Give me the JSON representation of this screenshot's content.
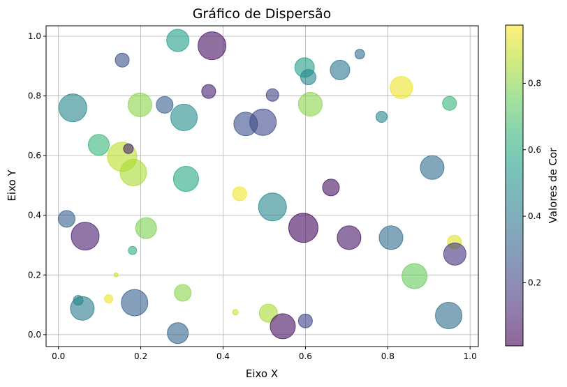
{
  "chart_data": {
    "type": "scatter",
    "title": "Gráfico de Dispersão",
    "xlabel": "Eixo X",
    "ylabel": "Eixo Y",
    "xlim": [
      -0.03,
      1.02
    ],
    "ylim": [
      -0.04,
      1.035
    ],
    "xticks": [
      0.0,
      0.2,
      0.4,
      0.6,
      0.8,
      1.0
    ],
    "xtick_labels": [
      "0.0",
      "0.2",
      "0.4",
      "0.6",
      "0.8",
      "1.0"
    ],
    "yticks": [
      0.0,
      0.2,
      0.4,
      0.6,
      0.8,
      1.0
    ],
    "ytick_labels": [
      "0.0",
      "0.2",
      "0.4",
      "0.6",
      "0.8",
      "1.0"
    ],
    "grid": true,
    "alpha": 0.6,
    "colormap": "viridis",
    "colorbar": {
      "label": "Valores de Cor",
      "range": [
        0.01,
        0.975
      ],
      "ticks": [
        0.2,
        0.4,
        0.6,
        0.8
      ],
      "tick_labels": [
        "0.2",
        "0.4",
        "0.6",
        "0.8"
      ]
    },
    "points": [
      {
        "x": 0.035,
        "y": 0.76,
        "size": 20,
        "color": 0.45
      },
      {
        "x": 0.02,
        "y": 0.388,
        "size": 12,
        "color": 0.3
      },
      {
        "x": 0.065,
        "y": 0.33,
        "size": 20,
        "color": 0.08
      },
      {
        "x": 0.058,
        "y": 0.088,
        "size": 17,
        "color": 0.4
      },
      {
        "x": 0.048,
        "y": 0.115,
        "size": 7,
        "color": 0.45
      },
      {
        "x": 0.098,
        "y": 0.636,
        "size": 15,
        "color": 0.65
      },
      {
        "x": 0.155,
        "y": 0.92,
        "size": 10,
        "color": 0.25
      },
      {
        "x": 0.155,
        "y": 0.596,
        "size": 21,
        "color": 0.88
      },
      {
        "x": 0.17,
        "y": 0.623,
        "size": 7,
        "color": 0.1
      },
      {
        "x": 0.182,
        "y": 0.543,
        "size": 19,
        "color": 0.85
      },
      {
        "x": 0.198,
        "y": 0.77,
        "size": 17,
        "color": 0.8
      },
      {
        "x": 0.185,
        "y": 0.107,
        "size": 19,
        "color": 0.3
      },
      {
        "x": 0.18,
        "y": 0.282,
        "size": 6,
        "color": 0.62
      },
      {
        "x": 0.14,
        "y": 0.2,
        "size": 3,
        "color": 0.9
      },
      {
        "x": 0.122,
        "y": 0.12,
        "size": 6,
        "color": 0.95
      },
      {
        "x": 0.213,
        "y": 0.357,
        "size": 15,
        "color": 0.78
      },
      {
        "x": 0.258,
        "y": 0.77,
        "size": 12,
        "color": 0.3
      },
      {
        "x": 0.29,
        "y": 0.986,
        "size": 16,
        "color": 0.55
      },
      {
        "x": 0.305,
        "y": 0.728,
        "size": 19,
        "color": 0.48
      },
      {
        "x": 0.31,
        "y": 0.522,
        "size": 18,
        "color": 0.58
      },
      {
        "x": 0.302,
        "y": 0.14,
        "size": 12,
        "color": 0.8
      },
      {
        "x": 0.29,
        "y": 0.005,
        "size": 15,
        "color": 0.32
      },
      {
        "x": 0.373,
        "y": 0.968,
        "size": 20,
        "color": 0.05
      },
      {
        "x": 0.365,
        "y": 0.815,
        "size": 10,
        "color": 0.1
      },
      {
        "x": 0.455,
        "y": 0.706,
        "size": 17,
        "color": 0.25
      },
      {
        "x": 0.497,
        "y": 0.712,
        "size": 19,
        "color": 0.22
      },
      {
        "x": 0.52,
        "y": 0.803,
        "size": 9,
        "color": 0.2
      },
      {
        "x": 0.44,
        "y": 0.472,
        "size": 10,
        "color": 0.96
      },
      {
        "x": 0.52,
        "y": 0.428,
        "size": 20,
        "color": 0.45
      },
      {
        "x": 0.43,
        "y": 0.075,
        "size": 4,
        "color": 0.9
      },
      {
        "x": 0.51,
        "y": 0.072,
        "size": 13,
        "color": 0.85
      },
      {
        "x": 0.545,
        "y": 0.028,
        "size": 18,
        "color": 0.05
      },
      {
        "x": 0.595,
        "y": 0.358,
        "size": 21,
        "color": 0.03
      },
      {
        "x": 0.6,
        "y": 0.046,
        "size": 10,
        "color": 0.2
      },
      {
        "x": 0.598,
        "y": 0.895,
        "size": 14,
        "color": 0.55
      },
      {
        "x": 0.607,
        "y": 0.863,
        "size": 11,
        "color": 0.45
      },
      {
        "x": 0.612,
        "y": 0.772,
        "size": 17,
        "color": 0.8
      },
      {
        "x": 0.662,
        "y": 0.493,
        "size": 12,
        "color": 0.05
      },
      {
        "x": 0.684,
        "y": 0.887,
        "size": 14,
        "color": 0.38
      },
      {
        "x": 0.706,
        "y": 0.325,
        "size": 17,
        "color": 0.07
      },
      {
        "x": 0.732,
        "y": 0.94,
        "size": 7,
        "color": 0.35
      },
      {
        "x": 0.785,
        "y": 0.73,
        "size": 8,
        "color": 0.45
      },
      {
        "x": 0.808,
        "y": 0.325,
        "size": 17,
        "color": 0.35
      },
      {
        "x": 0.833,
        "y": 0.828,
        "size": 16,
        "color": 0.95
      },
      {
        "x": 0.865,
        "y": 0.196,
        "size": 18,
        "color": 0.75
      },
      {
        "x": 0.908,
        "y": 0.56,
        "size": 17,
        "color": 0.35
      },
      {
        "x": 0.95,
        "y": 0.775,
        "size": 10,
        "color": 0.65
      },
      {
        "x": 0.962,
        "y": 0.31,
        "size": 10,
        "color": 0.93
      },
      {
        "x": 0.963,
        "y": 0.27,
        "size": 16,
        "color": 0.15
      },
      {
        "x": 0.948,
        "y": 0.064,
        "size": 19,
        "color": 0.35
      }
    ]
  }
}
